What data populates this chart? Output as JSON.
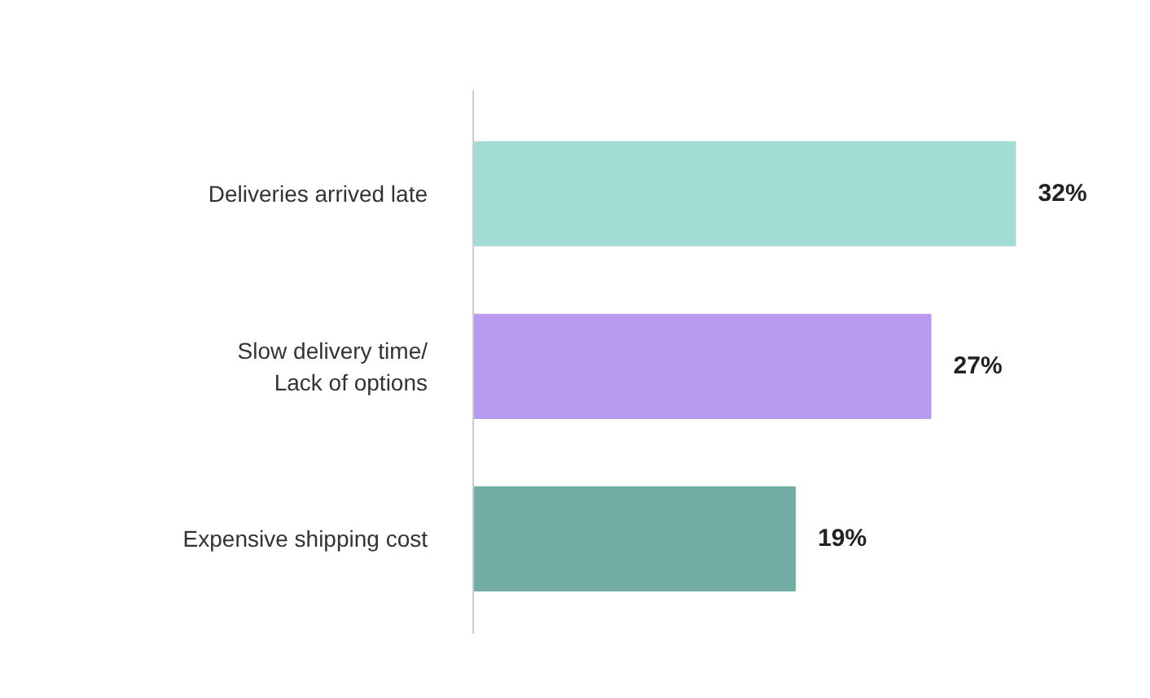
{
  "chart_data": {
    "type": "bar",
    "orientation": "horizontal",
    "categories": [
      "Deliveries arrived late",
      "Slow delivery time/\nLack of options",
      "Expensive shipping cost"
    ],
    "values": [
      32,
      27,
      19
    ],
    "colors": [
      "#a3dcd5",
      "#b99af0",
      "#72aea6"
    ],
    "value_labels": [
      "32%",
      "27%",
      "19%"
    ],
    "grid": false
  }
}
